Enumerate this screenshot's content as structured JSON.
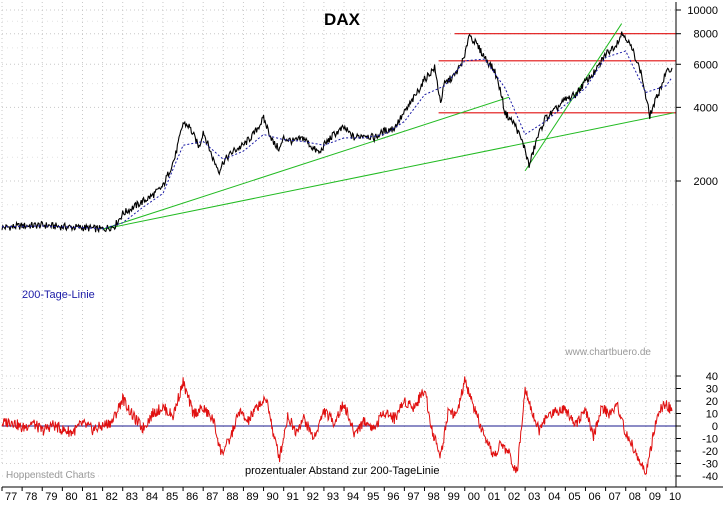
{
  "chart_data": [
    {
      "type": "line",
      "title": "DAX",
      "scale": "log",
      "ylim": [
        1200,
        10000
      ],
      "y_ticks": [
        {
          "value": 10000,
          "label": "10000"
        },
        {
          "value": 8000,
          "label": "8000"
        },
        {
          "value": 6000,
          "label": "6000"
        },
        {
          "value": 4000,
          "label": "4000"
        },
        {
          "value": 2000,
          "label": "2000"
        }
      ],
      "x_ticks": [
        "77",
        "78",
        "79",
        "80",
        "81",
        "82",
        "83",
        "84",
        "85",
        "86",
        "87",
        "88",
        "89",
        "90",
        "91",
        "92",
        "93",
        "94",
        "95",
        "96",
        "97",
        "98",
        "99",
        "00",
        "01",
        "02",
        "03",
        "04",
        "05",
        "06",
        "07",
        "08",
        "09",
        "10"
      ],
      "x_range": [
        1977.0,
        2010.5
      ],
      "grid": true,
      "series": [
        {
          "name": "DAX",
          "color": "#000000",
          "x": [
            1977.0,
            1978.0,
            1979.0,
            1980.0,
            1981.0,
            1981.5,
            1982.0,
            1982.6,
            1983.0,
            1984.0,
            1984.5,
            1985.0,
            1985.6,
            1986.0,
            1986.3,
            1986.8,
            1987.0,
            1987.5,
            1987.8,
            1988.0,
            1988.5,
            1989.0,
            1989.5,
            1990.0,
            1990.5,
            1990.8,
            1991.0,
            1991.5,
            1992.0,
            1992.5,
            1992.8,
            1993.0,
            1993.5,
            1994.0,
            1994.5,
            1995.0,
            1995.5,
            1996.0,
            1996.5,
            1997.0,
            1997.5,
            1998.0,
            1998.5,
            1998.8,
            1999.0,
            1999.5,
            2000.0,
            2000.2,
            2000.6,
            2001.0,
            2001.5,
            2001.8,
            2002.0,
            2002.5,
            2003.0,
            2003.2,
            2003.6,
            2004.0,
            2004.5,
            2005.0,
            2005.5,
            2006.0,
            2006.5,
            2007.0,
            2007.5,
            2007.8,
            2008.0,
            2008.5,
            2008.8,
            2009.0,
            2009.2,
            2009.5,
            2010.0,
            2010.3
          ],
          "y": [
            1290,
            1310,
            1320,
            1300,
            1290,
            1280,
            1270,
            1310,
            1470,
            1650,
            1750,
            1900,
            2500,
            3450,
            3350,
            2750,
            3200,
            2450,
            2200,
            2400,
            2650,
            2800,
            3100,
            3600,
            2850,
            2700,
            3000,
            2900,
            3000,
            2700,
            2600,
            2800,
            3100,
            3300,
            3000,
            3100,
            3000,
            3200,
            3300,
            3800,
            4400,
            5200,
            5800,
            4200,
            5000,
            5400,
            6400,
            8000,
            7200,
            6400,
            5600,
            4600,
            3800,
            3400,
            2700,
            2300,
            3000,
            3600,
            3900,
            4300,
            4500,
            5100,
            5600,
            6600,
            7200,
            8000,
            7800,
            6400,
            5400,
            4400,
            3700,
            4300,
            5500,
            5800
          ]
        },
        {
          "name": "200-Tage-Linie",
          "color": "#1a1aa6",
          "x": [
            1977.0,
            1978.0,
            1979.0,
            1980.0,
            1981.0,
            1982.0,
            1983.0,
            1984.0,
            1985.0,
            1986.0,
            1987.0,
            1988.0,
            1989.0,
            1990.0,
            1991.0,
            1992.0,
            1993.0,
            1994.0,
            1995.0,
            1996.0,
            1997.0,
            1998.0,
            1999.0,
            2000.0,
            2001.0,
            2002.0,
            2003.0,
            2004.0,
            2005.0,
            2006.0,
            2007.0,
            2008.0,
            2009.0,
            2010.0,
            2010.3
          ],
          "y": [
            1300,
            1305,
            1310,
            1300,
            1290,
            1275,
            1350,
            1560,
            1780,
            2800,
            2900,
            2450,
            2650,
            3100,
            2950,
            2900,
            2800,
            3000,
            3000,
            3100,
            3500,
            4500,
            4900,
            6200,
            6300,
            4800,
            3100,
            3500,
            4100,
            4800,
            6400,
            6800,
            4600,
            4900,
            5300
          ]
        }
      ],
      "trend_lines": [
        {
          "from": [
            1982.0,
            1270
          ],
          "to": [
            2002.2,
            4400
          ]
        },
        {
          "from": [
            1982.0,
            1270
          ],
          "to": [
            2010.4,
            3800
          ]
        },
        {
          "from": [
            2003.0,
            2200
          ],
          "to": [
            2007.8,
            8800
          ]
        }
      ],
      "horizontal_levels": [
        {
          "value": 8000,
          "from_x": 1999.5,
          "to_x": 2010.5
        },
        {
          "value": 6200,
          "from_x": 1998.7,
          "to_x": 2010.5
        },
        {
          "value": 3800,
          "from_x": 1998.7,
          "to_x": 2010.5
        }
      ],
      "annotations": {
        "legend_label": "200-Tage-Linie",
        "watermark": "www.chartbuero.de"
      },
      "colors": {
        "dax": "#000000",
        "ma": "#1a1aa6",
        "trend": "#22bb22",
        "levels": "#e01010"
      }
    },
    {
      "type": "line",
      "title": "",
      "ylim": [
        -45,
        45
      ],
      "y_ticks": [
        {
          "value": 40,
          "label": "40"
        },
        {
          "value": 30,
          "label": "30"
        },
        {
          "value": 20,
          "label": "20"
        },
        {
          "value": 10,
          "label": "10"
        },
        {
          "value": 0,
          "label": "0"
        },
        {
          "value": -10,
          "label": "-10"
        },
        {
          "value": -20,
          "label": "-20"
        },
        {
          "value": -30,
          "label": "-30"
        },
        {
          "value": -40,
          "label": "-40"
        }
      ],
      "zero_line": true,
      "series": [
        {
          "name": "prozentualer Abstand zur 200-TageLinie",
          "color": "#e01010",
          "x": [
            1977.0,
            1977.5,
            1978.0,
            1978.5,
            1979.0,
            1979.5,
            1980.0,
            1980.5,
            1981.0,
            1981.5,
            1982.0,
            1982.5,
            1983.0,
            1983.5,
            1984.0,
            1984.5,
            1985.0,
            1985.5,
            1986.0,
            1986.5,
            1987.0,
            1987.5,
            1987.9,
            1988.3,
            1988.8,
            1989.2,
            1989.8,
            1990.2,
            1990.5,
            1990.8,
            1991.2,
            1991.6,
            1992.0,
            1992.5,
            1993.0,
            1993.5,
            1994.0,
            1994.5,
            1995.0,
            1995.5,
            1996.0,
            1996.5,
            1997.0,
            1997.5,
            1998.0,
            1998.4,
            1998.8,
            1999.2,
            1999.6,
            2000.0,
            2000.3,
            2000.7,
            2001.0,
            2001.5,
            2001.8,
            2002.2,
            2002.6,
            2003.0,
            2003.3,
            2003.7,
            2004.0,
            2004.5,
            2005.0,
            2005.5,
            2006.0,
            2006.4,
            2006.8,
            2007.2,
            2007.6,
            2008.0,
            2008.4,
            2008.8,
            2009.0,
            2009.3,
            2009.6,
            2010.0,
            2010.3
          ],
          "y": [
            2,
            4,
            -2,
            3,
            -4,
            1,
            -3,
            -5,
            2,
            -3,
            0,
            4,
            22,
            8,
            -2,
            10,
            15,
            8,
            35,
            10,
            14,
            5,
            -22,
            -12,
            12,
            3,
            18,
            20,
            -8,
            -25,
            8,
            -4,
            6,
            -10,
            12,
            3,
            18,
            -6,
            4,
            -2,
            12,
            6,
            20,
            15,
            30,
            -5,
            -24,
            14,
            8,
            36,
            22,
            4,
            -12,
            -24,
            -14,
            -22,
            -38,
            32,
            14,
            -4,
            6,
            12,
            14,
            2,
            12,
            -8,
            14,
            10,
            16,
            -6,
            -18,
            -32,
            -38,
            -14,
            10,
            18,
            12
          ]
        }
      ],
      "annotations": {
        "x_label": "prozentualer Abstand zur 200-TageLinie",
        "source": "Hoppenstedt Charts"
      }
    }
  ]
}
